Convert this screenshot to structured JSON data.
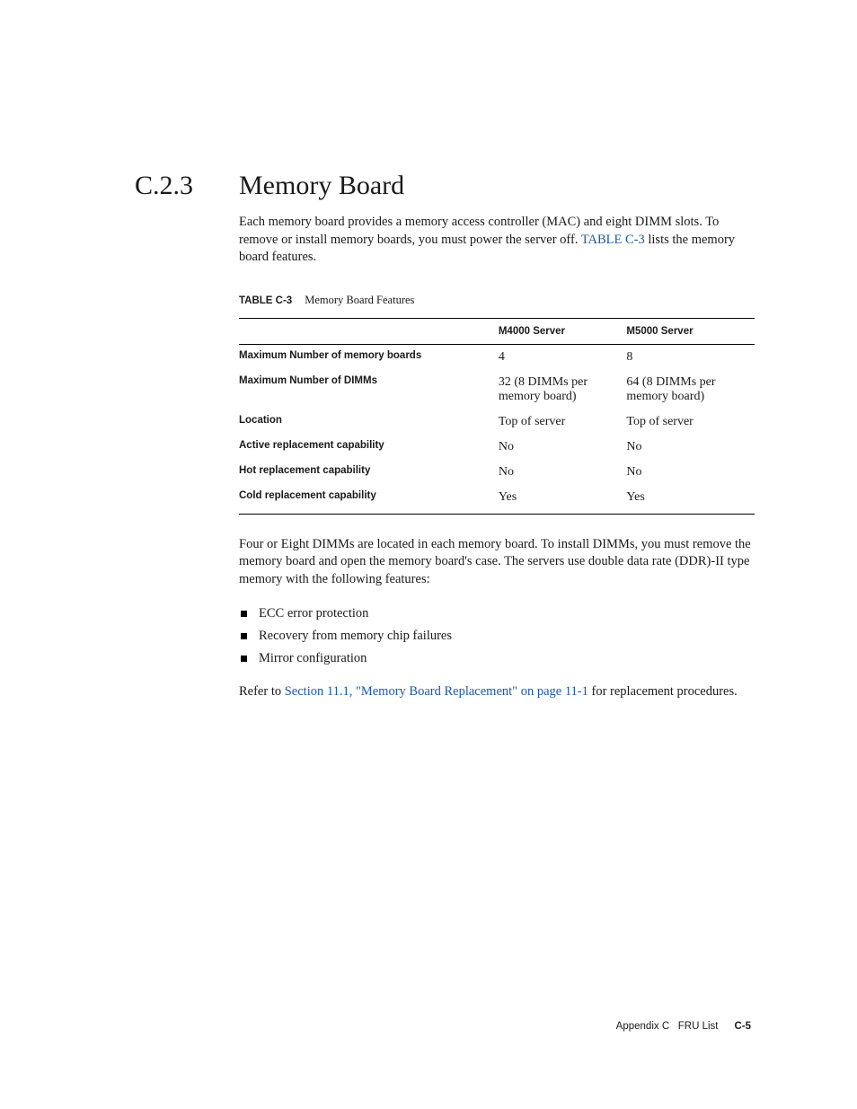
{
  "heading": {
    "number": "C.2.3",
    "title": "Memory Board"
  },
  "intro": {
    "text_before_link": "Each memory board provides a memory access controller (MAC) and eight DIMM slots. To remove or install memory boards, you must power the server off. ",
    "link_text": "TABLE C-3",
    "text_after_link": " lists the memory board features."
  },
  "table": {
    "caption_label": "TABLE C-3",
    "caption_text": "Memory Board Features",
    "columns": [
      "",
      "M4000 Server",
      "M5000 Server"
    ],
    "rows": [
      {
        "label": "Maximum Number of memory boards",
        "m4000": "4",
        "m5000": "8"
      },
      {
        "label": "Maximum Number of DIMMs",
        "m4000": "32 (8 DIMMs per memory board)",
        "m5000": "64 (8 DIMMs per memory board)"
      },
      {
        "label": "Location",
        "m4000": "Top of server",
        "m5000": "Top of server"
      },
      {
        "label": "Active replacement capability",
        "m4000": "No",
        "m5000": "No"
      },
      {
        "label": "Hot replacement capability",
        "m4000": "No",
        "m5000": "No"
      },
      {
        "label": "Cold replacement capability",
        "m4000": "Yes",
        "m5000": "Yes"
      }
    ]
  },
  "after_table_para": "Four or Eight DIMMs are located in each memory board. To install DIMMs, you must remove the memory board and open the memory board's case. The servers use double data rate (DDR)-II type memory with the following features:",
  "bullets": [
    "ECC error protection",
    "Recovery from memory chip failures",
    "Mirror configuration"
  ],
  "refer": {
    "before": "Refer to ",
    "link": "Section 11.1, \"Memory Board Replacement\" on page 11-1",
    "after": " for replacement procedures."
  },
  "footer": {
    "appendix": "Appendix C",
    "title": "FRU List",
    "page": "C-5"
  }
}
